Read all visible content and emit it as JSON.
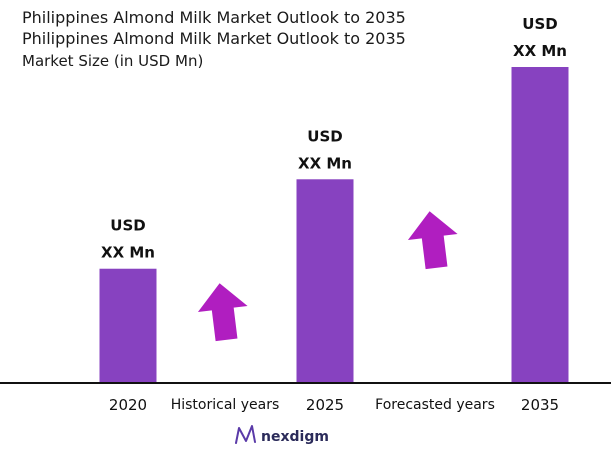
{
  "chart_data": {
    "type": "bar",
    "title_lines": [
      "Philippines Almond Milk Market Outlook to 2035",
      "Philippines Almond Milk Market Outlook to 2035"
    ],
    "subtitle": "Market Size (in USD Mn)",
    "categories": [
      "2020",
      "2025",
      "2035"
    ],
    "values": [
      115,
      205,
      318
    ],
    "value_labels": [
      [
        "USD",
        "XX Mn"
      ],
      [
        "USD",
        "XX Mn"
      ],
      [
        "USD",
        "XX Mn"
      ]
    ],
    "period_labels": [
      "Historical years",
      "Forecasted years"
    ],
    "ylim": [
      0,
      318
    ],
    "grid": false,
    "colors": {
      "bar": "#8742c0",
      "arrow": "#b01ec0",
      "axis": "#111111"
    }
  },
  "footer": {
    "logo_text": "nexdigm",
    "logo_icon": "nexdigm-wave-icon"
  }
}
